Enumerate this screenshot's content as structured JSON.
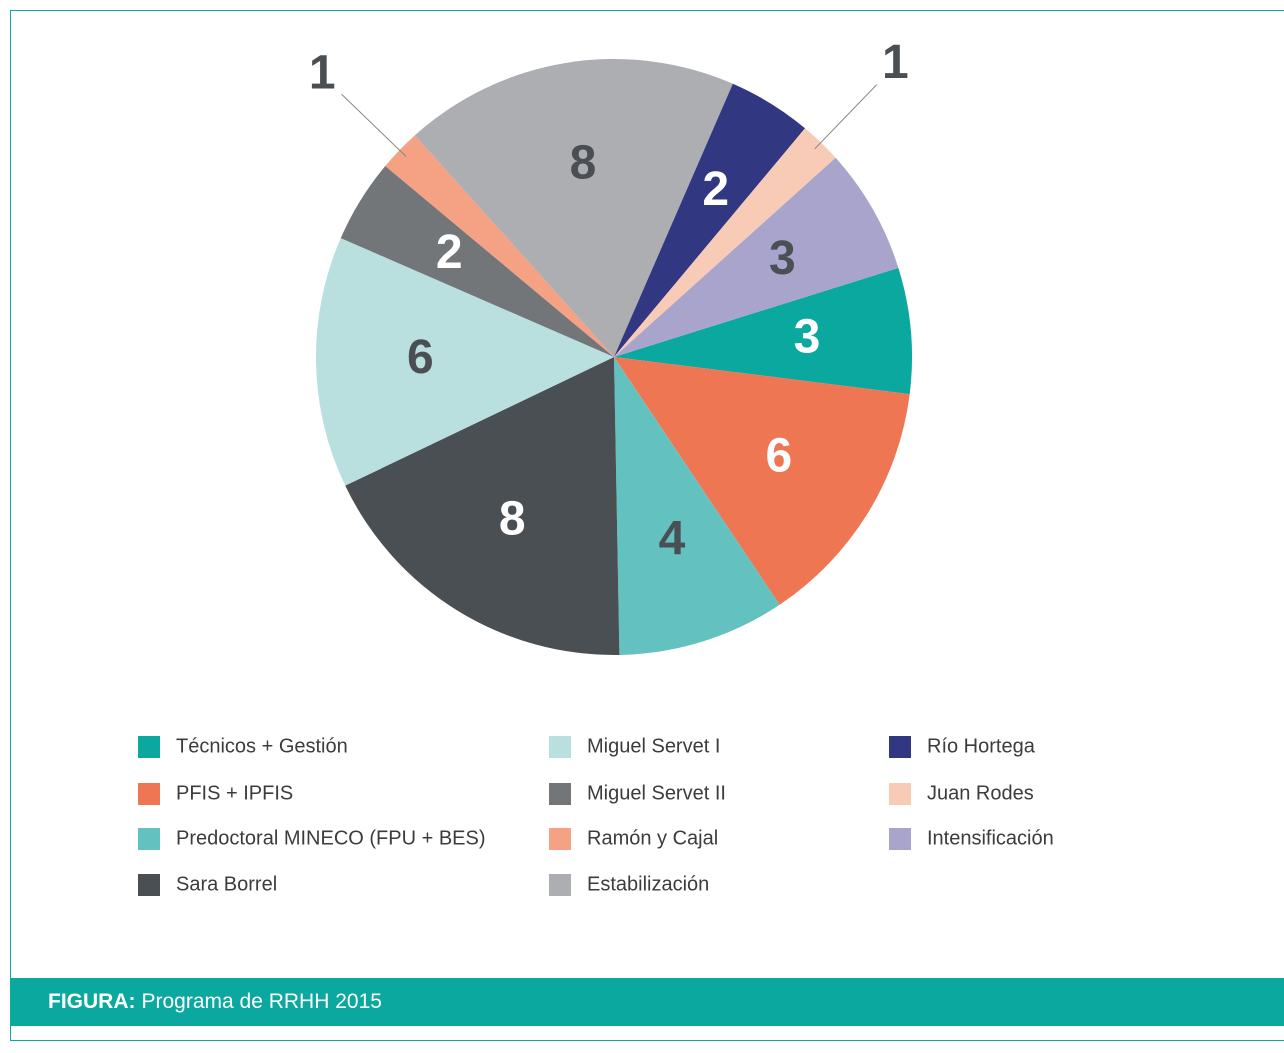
{
  "chart_data": {
    "type": "pie",
    "categories": [
      "Técnicos + Gestión",
      "PFIS + IPFIS",
      "Predoctoral MINECO (FPU + BES)",
      "Sara Borrel",
      "Miguel Servet I",
      "Miguel Servet II",
      "Ramón y Cajal",
      "Estabilización",
      "Río Hortega",
      "Juan Rodes",
      "Intensificación"
    ],
    "values": [
      3,
      6,
      4,
      8,
      6,
      2,
      1,
      8,
      2,
      1,
      3
    ],
    "colors": [
      "#0aa89f",
      "#ef7652",
      "#63c2c0",
      "#4a4f54",
      "#b9e0de",
      "#727679",
      "#f4a184",
      "#adaeb2",
      "#313781",
      "#f8cbb7",
      "#a9a4cc"
    ],
    "caption": {
      "label": "FIGURA:",
      "text": "Programa de RRHH 2015"
    }
  }
}
